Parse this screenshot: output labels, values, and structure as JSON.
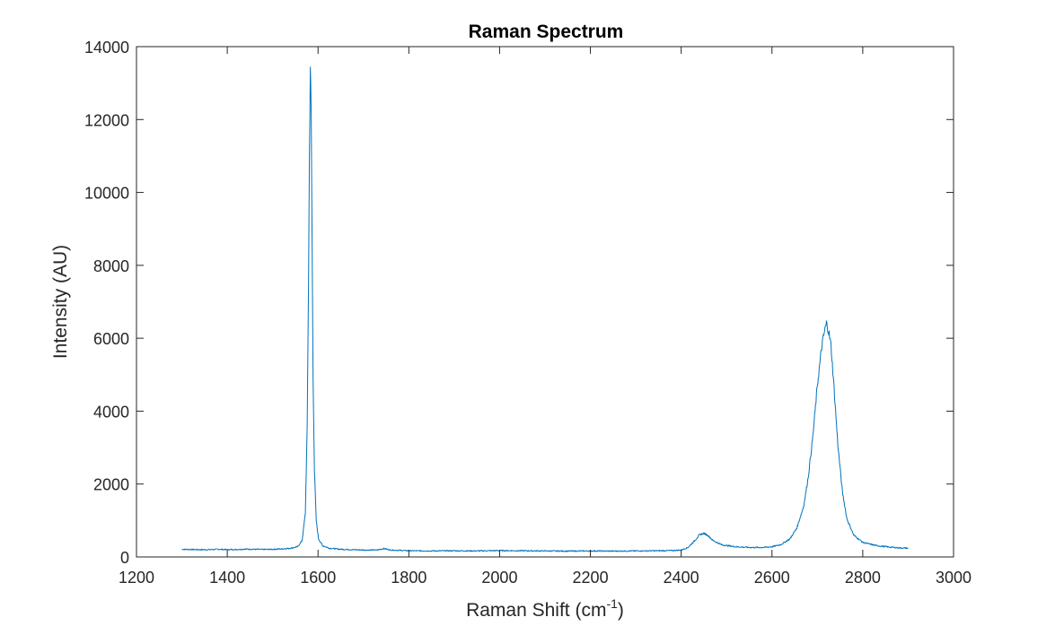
{
  "chart_data": {
    "type": "line",
    "title": "Raman Spectrum",
    "xlabel": {
      "text": "Raman Shift (cm",
      "superscript": "-1",
      "suffix": ")"
    },
    "ylabel": "Intensity (AU)",
    "xlim": [
      1200,
      3000
    ],
    "ylim": [
      0,
      14000
    ],
    "x_ticks": [
      1200,
      1400,
      1600,
      1800,
      2000,
      2200,
      2400,
      2600,
      2800,
      3000
    ],
    "y_ticks": [
      0,
      2000,
      4000,
      6000,
      8000,
      10000,
      12000,
      14000
    ],
    "grid": false,
    "box": true,
    "series": [
      {
        "color": "#0072BD",
        "points": [
          [
            1300,
            210
          ],
          [
            1320,
            205
          ],
          [
            1340,
            200
          ],
          [
            1360,
            200
          ],
          [
            1380,
            210
          ],
          [
            1400,
            200
          ],
          [
            1420,
            205
          ],
          [
            1440,
            215
          ],
          [
            1460,
            210
          ],
          [
            1480,
            205
          ],
          [
            1500,
            210
          ],
          [
            1520,
            220
          ],
          [
            1540,
            240
          ],
          [
            1555,
            280
          ],
          [
            1565,
            450
          ],
          [
            1572,
            1200
          ],
          [
            1576,
            3500
          ],
          [
            1579,
            7500
          ],
          [
            1581,
            11000
          ],
          [
            1583,
            13500
          ],
          [
            1585,
            12000
          ],
          [
            1587,
            8500
          ],
          [
            1589,
            5000
          ],
          [
            1592,
            2400
          ],
          [
            1596,
            1000
          ],
          [
            1601,
            500
          ],
          [
            1610,
            310
          ],
          [
            1625,
            240
          ],
          [
            1650,
            210
          ],
          [
            1700,
            190
          ],
          [
            1730,
            190
          ],
          [
            1745,
            230
          ],
          [
            1760,
            190
          ],
          [
            1800,
            170
          ],
          [
            1850,
            165
          ],
          [
            1900,
            170
          ],
          [
            1950,
            165
          ],
          [
            2000,
            175
          ],
          [
            2050,
            170
          ],
          [
            2100,
            165
          ],
          [
            2150,
            160
          ],
          [
            2200,
            165
          ],
          [
            2250,
            160
          ],
          [
            2300,
            165
          ],
          [
            2350,
            170
          ],
          [
            2380,
            175
          ],
          [
            2400,
            190
          ],
          [
            2415,
            260
          ],
          [
            2430,
            450
          ],
          [
            2440,
            600
          ],
          [
            2450,
            650
          ],
          [
            2460,
            580
          ],
          [
            2470,
            450
          ],
          [
            2490,
            330
          ],
          [
            2520,
            280
          ],
          [
            2550,
            260
          ],
          [
            2580,
            260
          ],
          [
            2600,
            280
          ],
          [
            2620,
            340
          ],
          [
            2640,
            500
          ],
          [
            2655,
            800
          ],
          [
            2670,
            1400
          ],
          [
            2680,
            2200
          ],
          [
            2690,
            3300
          ],
          [
            2700,
            4700
          ],
          [
            2710,
            5800
          ],
          [
            2716,
            6200
          ],
          [
            2720,
            6400
          ],
          [
            2724,
            6250
          ],
          [
            2730,
            5800
          ],
          [
            2737,
            4600
          ],
          [
            2745,
            3100
          ],
          [
            2755,
            1800
          ],
          [
            2765,
            1050
          ],
          [
            2780,
            600
          ],
          [
            2800,
            400
          ],
          [
            2830,
            310
          ],
          [
            2860,
            270
          ],
          [
            2880,
            250
          ],
          [
            2900,
            240
          ]
        ]
      }
    ]
  }
}
